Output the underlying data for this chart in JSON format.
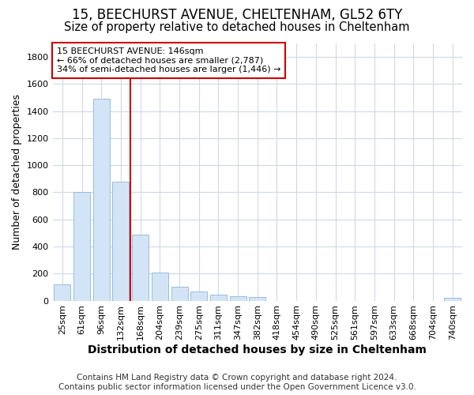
{
  "title_line1": "15, BEECHURST AVENUE, CHELTENHAM, GL52 6TY",
  "title_line2": "Size of property relative to detached houses in Cheltenham",
  "xlabel": "Distribution of detached houses by size in Cheltenham",
  "ylabel": "Number of detached properties",
  "footer": "Contains HM Land Registry data © Crown copyright and database right 2024.\nContains public sector information licensed under the Open Government Licence v3.0.",
  "categories": [
    "25sqm",
    "61sqm",
    "96sqm",
    "132sqm",
    "168sqm",
    "204sqm",
    "239sqm",
    "275sqm",
    "311sqm",
    "347sqm",
    "382sqm",
    "418sqm",
    "454sqm",
    "490sqm",
    "525sqm",
    "561sqm",
    "597sqm",
    "633sqm",
    "668sqm",
    "704sqm",
    "740sqm"
  ],
  "values": [
    120,
    800,
    1490,
    880,
    490,
    205,
    105,
    65,
    45,
    35,
    28,
    0,
    0,
    0,
    0,
    0,
    0,
    0,
    0,
    0,
    18
  ],
  "bar_color": "#d4e4f7",
  "bar_edgecolor": "#8ab4d8",
  "vline_color": "#cc0000",
  "vline_pos": 3.5,
  "annotation_line1": "15 BEECHURST AVENUE: 146sqm",
  "annotation_line2": "← 66% of detached houses are smaller (2,787)",
  "annotation_line3": "34% of semi-detached houses are larger (1,446) →",
  "annotation_box_edgecolor": "#cc0000",
  "ylim": [
    0,
    1900
  ],
  "yticks": [
    0,
    200,
    400,
    600,
    800,
    1000,
    1200,
    1400,
    1600,
    1800
  ],
  "bg_color": "#ffffff",
  "plot_bg_color": "#ffffff",
  "grid_color": "#d0d8e8",
  "title1_fontsize": 12,
  "title2_fontsize": 10.5,
  "xlabel_fontsize": 10,
  "ylabel_fontsize": 9,
  "tick_fontsize": 8,
  "footer_fontsize": 7.5
}
